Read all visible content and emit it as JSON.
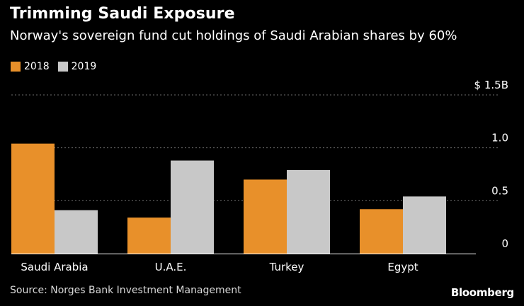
{
  "header": {
    "title": "Trimming Saudi Exposure",
    "subtitle": "Norway's sovereign fund cut holdings of Saudi Arabian shares by 60%"
  },
  "colors": {
    "series_2018": "#e8902a",
    "series_2019": "#c8c8c8",
    "grid": "#6b6b6b",
    "axis": "#ffffff",
    "text": "#ffffff"
  },
  "chart_data": {
    "type": "bar",
    "title": "Trimming Saudi Exposure",
    "subtitle": "Norway's sovereign fund cut holdings of Saudi Arabian shares by 60%",
    "categories": [
      "Saudi Arabia",
      "U.A.E.",
      "Turkey",
      "Egypt"
    ],
    "series": [
      {
        "name": "2018",
        "values": [
          1.04,
          0.34,
          0.7,
          0.42
        ]
      },
      {
        "name": "2019",
        "values": [
          0.41,
          0.88,
          0.79,
          0.54
        ]
      }
    ],
    "yticks": [
      {
        "value": 0,
        "label": "0"
      },
      {
        "value": 0.5,
        "label": "0.5"
      },
      {
        "value": 1.0,
        "label": "1.0"
      },
      {
        "value": 1.5,
        "label": "$ 1.5B"
      }
    ],
    "ylim": [
      0,
      1.5
    ],
    "xlabel": "",
    "ylabel": "",
    "grid": true,
    "legend": "top-left"
  },
  "footer": {
    "source": "Source: Norges Bank Investment Management",
    "brand": "Bloomberg"
  }
}
